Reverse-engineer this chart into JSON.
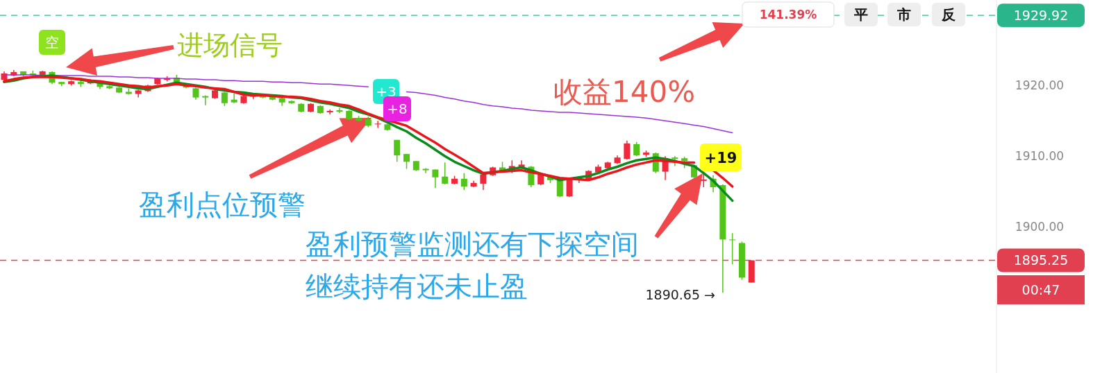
{
  "chart_data": {
    "type": "candlestick",
    "categories": [
      null,
      null,
      null,
      null,
      null,
      null,
      null,
      null,
      null,
      null,
      null,
      null,
      null,
      null,
      null,
      null,
      null,
      null,
      null,
      null,
      null,
      null,
      null,
      null,
      null,
      null,
      null,
      null,
      null,
      null,
      null,
      null,
      null,
      null,
      null,
      null,
      null,
      null,
      null,
      null,
      null,
      null,
      null,
      null,
      null,
      null,
      null,
      null,
      null,
      null,
      null,
      null,
      null,
      null,
      null,
      null,
      null,
      null,
      null,
      null,
      null,
      null,
      null,
      null,
      null,
      null,
      null,
      null,
      null,
      null,
      null,
      null,
      null,
      null,
      null,
      null,
      null,
      null,
      null
    ],
    "ylim": [
      1879.3,
      1932.1
    ],
    "yticks": [
      {
        "value": 1900,
        "label": "1900.00"
      },
      {
        "value": 1910,
        "label": "1910.00"
      },
      {
        "value": 1920,
        "label": "1920.00"
      }
    ],
    "series": [
      {
        "type": "candlestick",
        "ohlc": [
          [
            1920.8,
            1922.0,
            1920.6,
            1921.7
          ],
          [
            1921.4,
            1922.2,
            1921.3,
            1921.9
          ],
          [
            1922.0,
            1922.0,
            1921.3,
            1921.5
          ],
          [
            1921.7,
            1922.1,
            1921.4,
            1921.5
          ],
          [
            1921.4,
            1922.1,
            1921.3,
            1922.0
          ],
          [
            1921.9,
            1922.0,
            1920.2,
            1920.4
          ],
          [
            1920.5,
            1920.5,
            1919.9,
            1920.2
          ],
          [
            1920.2,
            1920.7,
            1920.0,
            1920.6
          ],
          [
            1920.5,
            1920.9,
            1919.8,
            1920.2
          ],
          [
            1920.3,
            1920.9,
            1920.2,
            1920.7
          ],
          [
            1920.4,
            1920.5,
            1919.5,
            1919.8
          ],
          [
            1919.9,
            1920.0,
            1919.5,
            1919.6
          ],
          [
            1919.7,
            1919.8,
            1918.9,
            1919.0
          ],
          [
            1919.1,
            1919.6,
            1918.7,
            1918.8
          ],
          [
            1918.8,
            1919.4,
            1918.3,
            1919.3
          ],
          [
            1919.2,
            1920.1,
            1919.1,
            1920.0
          ],
          [
            1920.2,
            1921.1,
            1920.1,
            1921.0
          ],
          [
            1920.8,
            1921.3,
            1920.6,
            1921.0
          ],
          [
            1921.1,
            1921.5,
            1920.3,
            1920.4
          ],
          [
            1920.1,
            1920.2,
            1919.6,
            1919.7
          ],
          [
            1919.6,
            1919.7,
            1918.0,
            1918.3
          ],
          [
            1918.5,
            1918.6,
            1917.2,
            1918.3
          ],
          [
            1918.2,
            1919.5,
            1918.1,
            1919.3
          ],
          [
            1919.0,
            1919.1,
            1917.1,
            1917.5
          ],
          [
            1918.0,
            1918.9,
            1917.5,
            1917.6
          ],
          [
            1917.5,
            1918.9,
            1917.4,
            1918.5
          ],
          [
            1918.4,
            1918.9,
            1918.1,
            1918.6
          ],
          [
            1918.6,
            1918.8,
            1918.2,
            1918.3
          ],
          [
            1918.4,
            1918.5,
            1917.9,
            1918.0
          ],
          [
            1918.2,
            1918.3,
            1917.1,
            1917.6
          ],
          [
            1917.8,
            1917.9,
            1917.4,
            1917.5
          ],
          [
            1917.4,
            1917.5,
            1916.2,
            1916.3
          ],
          [
            1916.3,
            1917.5,
            1916.2,
            1917.4
          ],
          [
            1917.1,
            1917.2,
            1916.0,
            1916.1
          ],
          [
            1916.2,
            1916.6,
            1915.9,
            1916.4
          ],
          [
            1916.5,
            1916.8,
            1916.1,
            1916.3
          ],
          [
            1916.4,
            1916.5,
            1915.1,
            1915.2
          ],
          [
            1915.4,
            1915.7,
            1914.9,
            1915.0
          ],
          [
            1915.2,
            1915.6,
            1914.1,
            1914.3
          ],
          [
            1914.5,
            1915.0,
            1914.0,
            1914.6
          ],
          [
            1914.5,
            1914.6,
            1913.6,
            1913.7
          ],
          [
            1912.3,
            1912.3,
            1909.2,
            1910.1
          ],
          [
            1910.3,
            1910.3,
            1908.2,
            1909.2
          ],
          [
            1909.3,
            1909.3,
            1907.9,
            1908.0
          ],
          [
            1908.2,
            1908.3,
            1907.6,
            1908.0
          ],
          [
            1908.1,
            1908.1,
            1905.5,
            1907.0
          ],
          [
            1907.1,
            1909.1,
            1906.0,
            1906.1
          ],
          [
            1906.1,
            1907.2,
            1906.0,
            1906.8
          ],
          [
            1906.8,
            1907.6,
            1905.2,
            1905.7
          ],
          [
            1905.7,
            1906.5,
            1905.6,
            1906.2
          ],
          [
            1906.1,
            1907.5,
            1905.2,
            1907.4
          ],
          [
            1907.3,
            1908.5,
            1907.2,
            1908.4
          ],
          [
            1908.4,
            1909.2,
            1907.7,
            1907.8
          ],
          [
            1907.8,
            1909.4,
            1907.6,
            1908.6
          ],
          [
            1908.3,
            1909.4,
            1908.2,
            1908.8
          ],
          [
            1908.5,
            1908.6,
            1905.6,
            1905.9
          ],
          [
            1906.0,
            1907.7,
            1905.9,
            1907.5
          ],
          [
            1907.2,
            1907.3,
            1906.2,
            1906.6
          ],
          [
            1906.8,
            1906.9,
            1904.2,
            1904.3
          ],
          [
            1904.3,
            1906.9,
            1904.2,
            1906.8
          ],
          [
            1906.7,
            1907.1,
            1906.2,
            1906.9
          ],
          [
            1906.6,
            1908.0,
            1906.5,
            1907.9
          ],
          [
            1907.7,
            1908.8,
            1907.6,
            1908.5
          ],
          [
            1908.3,
            1909.2,
            1908.2,
            1909.1
          ],
          [
            1909.0,
            1910.1,
            1908.9,
            1909.8
          ],
          [
            1909.6,
            1912.2,
            1909.5,
            1911.8
          ],
          [
            1911.7,
            1912.0,
            1910.0,
            1910.1
          ],
          [
            1910.2,
            1910.8,
            1909.9,
            1910.5
          ],
          [
            1910.4,
            1910.5,
            1907.6,
            1907.8
          ],
          [
            1907.8,
            1910.0,
            1906.6,
            1909.7
          ],
          [
            1909.8,
            1910.0,
            1908.6,
            1909.6
          ],
          [
            1909.7,
            1909.9,
            1908.3,
            1909.3
          ],
          [
            1908.7,
            1908.8,
            1906.9,
            1907.0
          ],
          [
            1906.5,
            1907.6,
            1905.6,
            1906.7
          ],
          [
            1906.8,
            1907.3,
            1904.9,
            1905.6
          ],
          [
            1905.9,
            1906.0,
            1890.65,
            1898.2
          ],
          [
            1898.2,
            1899.1,
            1894.7,
            1898.1
          ],
          [
            1897.7,
            1897.9,
            1892.5,
            1892.8
          ],
          [
            1892.1,
            1895.25,
            1892.1,
            1895.25
          ]
        ],
        "colors": [
          "#f0283c",
          "#f0283c",
          "#52c41a",
          "#52c41a",
          "#f0283c",
          "#52c41a",
          "#52c41a",
          "#f0283c",
          "#52c41a",
          "#f0283c",
          "#52c41a",
          "#52c41a",
          "#52c41a",
          "#52c41a",
          "#f0283c",
          "#f0283c",
          "#f0283c",
          "#f0283c",
          "#52c41a",
          "#52c41a",
          "#52c41a",
          "#52c41a",
          "#f0283c",
          "#52c41a",
          "#52c41a",
          "#f0283c",
          "#f0283c",
          "#52c41a",
          "#52c41a",
          "#52c41a",
          "#52c41a",
          "#52c41a",
          "#f0283c",
          "#52c41a",
          "#f0283c",
          "#52c41a",
          "#52c41a",
          "#52c41a",
          "#52c41a",
          "#f0283c",
          "#52c41a",
          "#52c41a",
          "#52c41a",
          "#52c41a",
          "#52c41a",
          "#52c41a",
          "#52c41a",
          "#f0283c",
          "#52c41a",
          "#f0283c",
          "#f0283c",
          "#f0283c",
          "#52c41a",
          "#f0283c",
          "#f0283c",
          "#52c41a",
          "#f0283c",
          "#52c41a",
          "#52c41a",
          "#f0283c",
          "#f0283c",
          "#f0283c",
          "#f0283c",
          "#f0283c",
          "#f0283c",
          "#f0283c",
          "#52c41a",
          "#f0283c",
          "#52c41a",
          "#f0283c",
          "#52c41a",
          "#52c41a",
          "#52c41a",
          "#f0283c",
          "#52c41a",
          "#52c41a",
          "#52c41a",
          "#52c41a",
          "#f0283c"
        ]
      },
      {
        "type": "line",
        "color": "#9b30d9",
        "values": [
          1921.5,
          1921.5,
          1921.5,
          1921.5,
          1921.4,
          1921.4,
          1921.4,
          1921.4,
          1921.4,
          1921.3,
          1921.3,
          1921.3,
          1921.2,
          1921.2,
          1921.1,
          1921.1,
          1921.0,
          1921.0,
          1921.0,
          1920.9,
          1920.9,
          1920.8,
          1920.8,
          1920.7,
          1920.7,
          1920.6,
          1920.6,
          1920.6,
          1920.5,
          1920.5,
          1920.4,
          1920.4,
          1920.3,
          1920.2,
          1920.2,
          1920.1,
          1920.0,
          1919.9,
          1919.8,
          null,
          null,
          null,
          1919.1,
          1919.0,
          1918.8,
          1918.6,
          1918.3,
          1918.1,
          1917.8,
          1917.6,
          1917.3,
          1917.1,
          1917.0,
          1916.8,
          1916.7,
          1916.5,
          1916.4,
          1916.3,
          1916.2,
          1916.2,
          1916.1,
          1916.0,
          1915.9,
          1915.8,
          1915.7,
          1915.6,
          1915.5,
          1915.4,
          1915.2,
          1915.0,
          1914.8,
          1914.6,
          1914.4,
          1914.2,
          1913.9,
          1913.6,
          1913.3,
          null,
          null
        ]
      },
      {
        "type": "line",
        "color": "#0a8a1a",
        "values": [
          1920.5,
          1920.7,
          1921.0,
          1921.2,
          1921.3,
          1921.4,
          1921.2,
          1921.0,
          1920.8,
          1920.6,
          1920.4,
          1920.2,
          1920.0,
          1919.8,
          1919.6,
          1919.5,
          1919.8,
          1920.1,
          1920.4,
          1920.2,
          1920.0,
          1919.8,
          1919.5,
          1919.3,
          1919.1,
          1919.0,
          1918.8,
          1918.7,
          1918.6,
          1918.5,
          1918.3,
          1918.2,
          1917.9,
          1917.6,
          1917.4,
          1917.1,
          1916.8,
          1916.3,
          1915.9,
          1915.4,
          1914.8,
          1914.1,
          1913.5,
          1912.6,
          1911.8,
          1910.9,
          1910.0,
          1909.2,
          1908.6,
          1908.0,
          1907.5,
          1907.7,
          1907.9,
          1908.2,
          1908.4,
          1908.0,
          1907.5,
          1907.1,
          1906.6,
          1906.8,
          1907.0,
          1907.2,
          1907.6,
          1908.1,
          1908.5,
          1909.0,
          1909.4,
          1909.6,
          1909.8,
          1909.6,
          1909.3,
          1908.9,
          1908.6,
          1907.6,
          1906.5,
          1905.1,
          1903.7,
          null,
          null
        ]
      },
      {
        "type": "line",
        "color": "#e8161b",
        "values": [
          1920.6,
          1920.9,
          1921.1,
          1921.2,
          1921.2,
          1921.2,
          1921.1,
          1921.0,
          1920.9,
          1920.7,
          1920.6,
          1920.4,
          1920.2,
          1920.0,
          1919.9,
          1919.7,
          1919.9,
          1920.0,
          1920.2,
          1920.0,
          1919.9,
          1919.7,
          1919.6,
          1919.5,
          1919.1,
          1918.7,
          1918.6,
          1918.6,
          1918.5,
          1918.4,
          1918.4,
          1918.3,
          1918.1,
          1917.8,
          1917.6,
          1917.3,
          1917.1,
          1916.6,
          1916.0,
          1915.5,
          1915.1,
          1914.7,
          1914.3,
          1913.5,
          1912.7,
          1911.9,
          1911.0,
          1910.2,
          1909.4,
          1908.5,
          1907.6,
          1907.7,
          1907.8,
          1907.9,
          1908.0,
          1907.7,
          1907.5,
          1907.2,
          1906.9,
          1906.8,
          1906.7,
          1906.6,
          1907.0,
          1907.5,
          1907.9,
          1908.4,
          1908.8,
          1909.1,
          1909.4,
          1909.3,
          1909.2,
          1909.1,
          1909.1,
          null,
          1908.0,
          1906.9,
          1905.7,
          null,
          null
        ]
      }
    ],
    "ref_lines": [
      {
        "axis": "y",
        "value": 1929.92,
        "label": "1929.92",
        "color": "#2bb58a",
        "line_style": "dashed"
      },
      {
        "axis": "y",
        "value": 1895.25,
        "label": "1895.25",
        "color": "#e0404f",
        "line_style": "dashed"
      }
    ],
    "annotations": [
      "141.39%",
      "平",
      "市",
      "反",
      "空",
      "进场信号",
      "+3",
      "+8",
      "收益140%",
      "+19",
      "盈利点位预警",
      "盈利预警监测还有下探空间",
      "继续持有还未止盈",
      "00:47",
      "1890.65 →"
    ]
  }
}
